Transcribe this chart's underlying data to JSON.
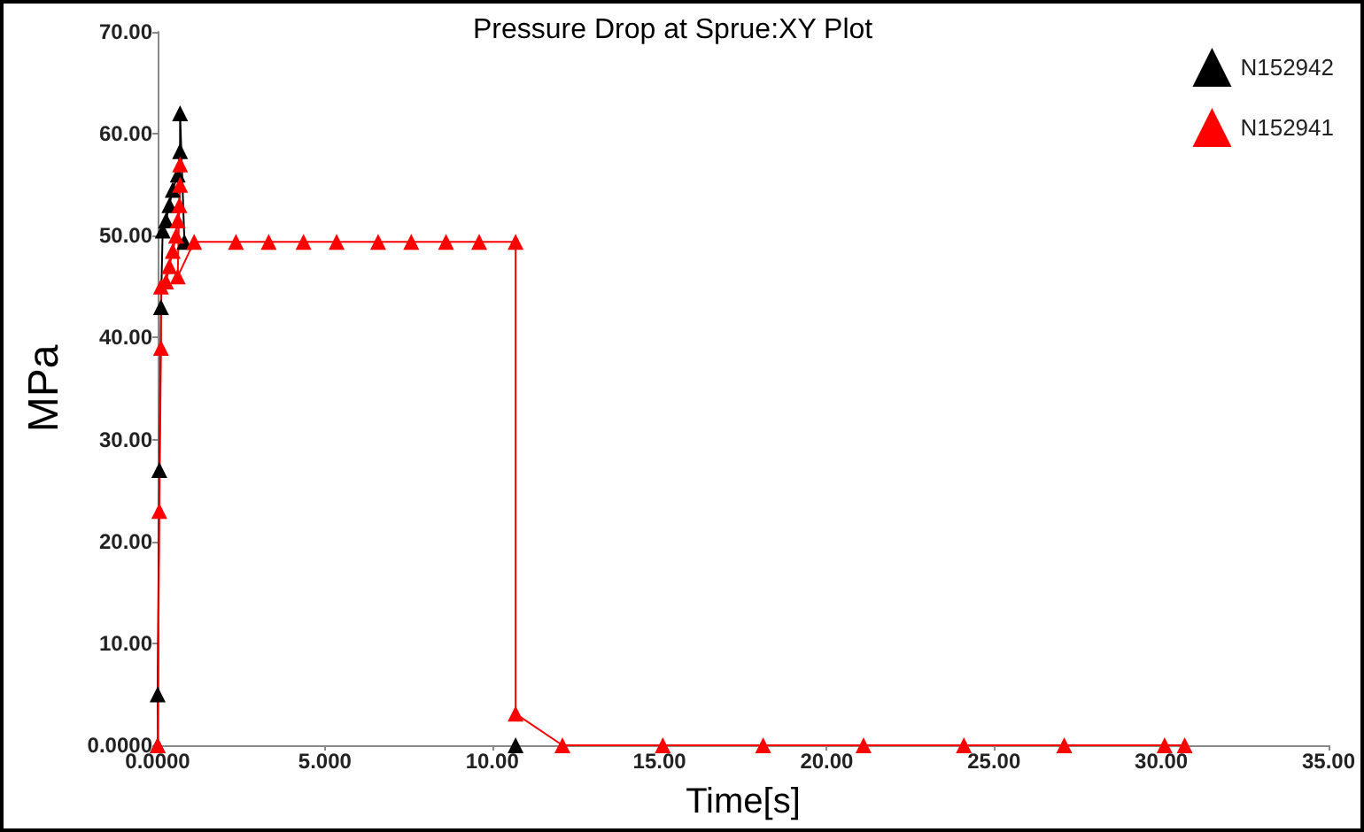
{
  "chart_data": {
    "type": "line",
    "title": "Pressure Drop at Sprue:XY Plot",
    "xlabel": "Time[s]",
    "ylabel": "MPa",
    "xlim": [
      0,
      35
    ],
    "ylim": [
      0,
      70
    ],
    "xticks": [
      {
        "value": 0,
        "label": "0.0000"
      },
      {
        "value": 5,
        "label": "5.000"
      },
      {
        "value": 10,
        "label": "10.00"
      },
      {
        "value": 15,
        "label": "15.00"
      },
      {
        "value": 20,
        "label": "20.00"
      },
      {
        "value": 25,
        "label": "25.00"
      },
      {
        "value": 30,
        "label": "30.00"
      },
      {
        "value": 35,
        "label": "35.00"
      }
    ],
    "yticks": [
      {
        "value": 0,
        "label": "0.0000"
      },
      {
        "value": 10,
        "label": "10.00"
      },
      {
        "value": 20,
        "label": "20.00"
      },
      {
        "value": 30,
        "label": "30.00"
      },
      {
        "value": 40,
        "label": "40.00"
      },
      {
        "value": 50,
        "label": "50.00"
      },
      {
        "value": 60,
        "label": "60.00"
      },
      {
        "value": 70,
        "label": "70.00"
      }
    ],
    "grid": false,
    "legend": "top right",
    "marker": "triangle",
    "line_style": "solid",
    "series": [
      {
        "name": "N152942",
        "color": "#000000",
        "x": [
          0,
          0,
          0.05,
          0.1,
          0.15,
          0.25,
          0.35,
          0.45,
          0.6,
          0.67,
          0.67,
          0.8,
          5,
          10.7
        ],
        "values": [
          0,
          5,
          27,
          43,
          50.5,
          51.5,
          53,
          54.5,
          56,
          58.3,
          62,
          49.4,
          null,
          0
        ]
      },
      {
        "name": "N152941",
        "color": "#ff0000",
        "x": [
          0,
          0.05,
          0.1,
          0.1,
          0.25,
          0.35,
          0.45,
          0.55,
          0.6,
          0.65,
          0.67,
          0.67,
          0.6,
          1.09,
          2.34,
          3.32,
          4.36,
          5.35,
          6.59,
          7.58,
          8.62,
          9.61,
          10.7,
          10.7,
          12.1,
          15.1,
          18.1,
          21.1,
          24.1,
          27.1,
          30.1,
          30.7
        ],
        "values": [
          0,
          23,
          39,
          45,
          45.5,
          47,
          48.5,
          50,
          51.5,
          53,
          55,
          57,
          46,
          49.4,
          49.4,
          49.4,
          49.4,
          49.4,
          49.4,
          49.4,
          49.4,
          49.4,
          49.4,
          3.1,
          0,
          0,
          0,
          0,
          0,
          0,
          0,
          0
        ]
      }
    ]
  }
}
